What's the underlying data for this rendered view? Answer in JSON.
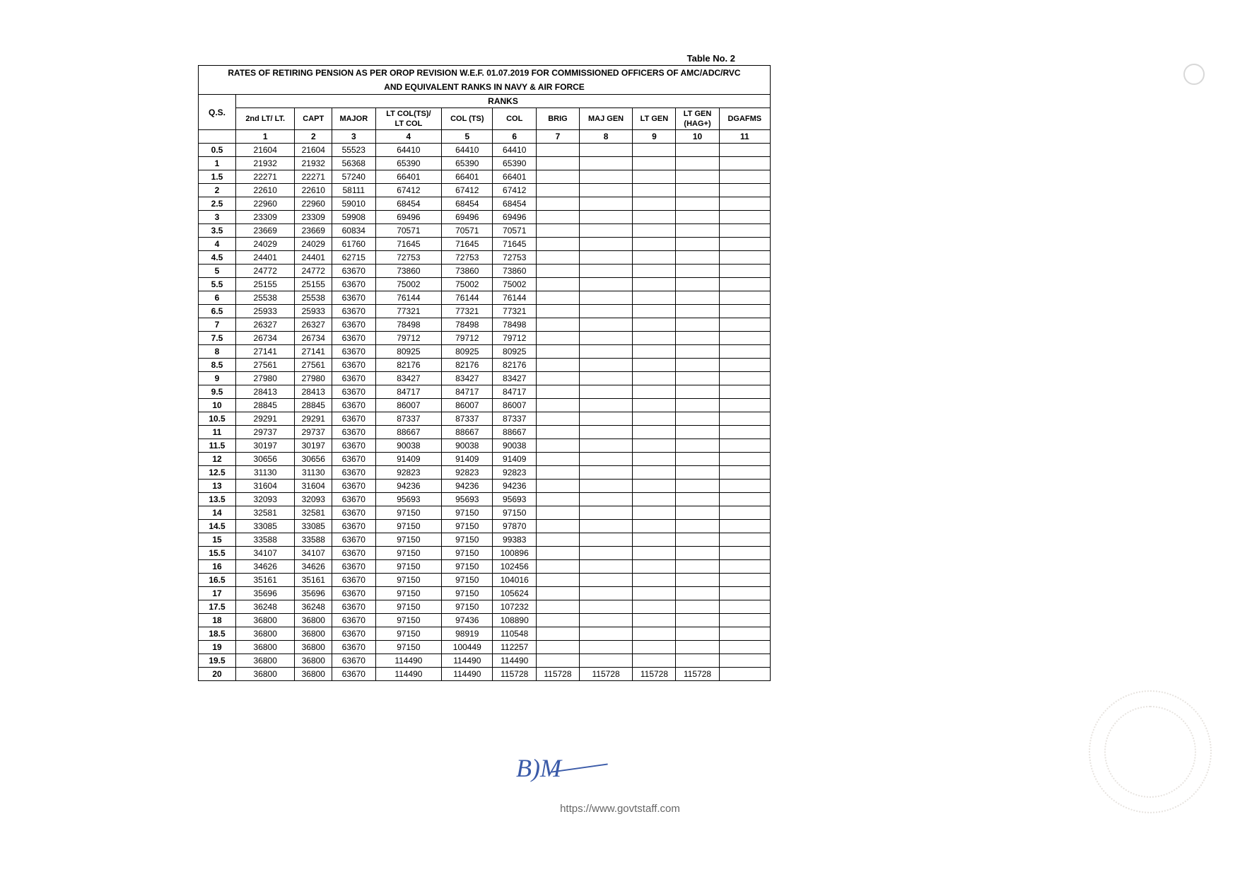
{
  "table_number": "Table No. 2",
  "title_line1": "RATES OF RETIRING PENSION AS PER OROP REVISION W.E.F. 01.07.2019 FOR COMMISSIONED OFFICERS OF AMC/ADC/RVC",
  "title_line2": "AND EQUIVALENT RANKS IN NAVY & AIR FORCE",
  "ranks_label": "RANKS",
  "qs_label": "Q.S.",
  "columns": [
    "2nd LT/ LT.",
    "CAPT",
    "MAJOR",
    "LT COL(TS)/\nLT COL",
    "COL (TS)",
    "COL",
    "BRIG",
    "MAJ GEN",
    "LT GEN",
    "LT GEN\n(HAG+)",
    "DGAFMS"
  ],
  "col_numbers": [
    "1",
    "2",
    "3",
    "4",
    "5",
    "6",
    "7",
    "8",
    "9",
    "10",
    "11"
  ],
  "rows": [
    {
      "qs": "0.5",
      "v": [
        "21604",
        "21604",
        "55523",
        "64410",
        "64410",
        "64410",
        "",
        "",
        "",
        "",
        ""
      ]
    },
    {
      "qs": "1",
      "v": [
        "21932",
        "21932",
        "56368",
        "65390",
        "65390",
        "65390",
        "",
        "",
        "",
        "",
        ""
      ]
    },
    {
      "qs": "1.5",
      "v": [
        "22271",
        "22271",
        "57240",
        "66401",
        "66401",
        "66401",
        "",
        "",
        "",
        "",
        ""
      ]
    },
    {
      "qs": "2",
      "v": [
        "22610",
        "22610",
        "58111",
        "67412",
        "67412",
        "67412",
        "",
        "",
        "",
        "",
        ""
      ]
    },
    {
      "qs": "2.5",
      "v": [
        "22960",
        "22960",
        "59010",
        "68454",
        "68454",
        "68454",
        "",
        "",
        "",
        "",
        ""
      ]
    },
    {
      "qs": "3",
      "v": [
        "23309",
        "23309",
        "59908",
        "69496",
        "69496",
        "69496",
        "",
        "",
        "",
        "",
        ""
      ]
    },
    {
      "qs": "3.5",
      "v": [
        "23669",
        "23669",
        "60834",
        "70571",
        "70571",
        "70571",
        "",
        "",
        "",
        "",
        ""
      ]
    },
    {
      "qs": "4",
      "v": [
        "24029",
        "24029",
        "61760",
        "71645",
        "71645",
        "71645",
        "",
        "",
        "",
        "",
        ""
      ]
    },
    {
      "qs": "4.5",
      "v": [
        "24401",
        "24401",
        "62715",
        "72753",
        "72753",
        "72753",
        "",
        "",
        "",
        "",
        ""
      ]
    },
    {
      "qs": "5",
      "v": [
        "24772",
        "24772",
        "63670",
        "73860",
        "73860",
        "73860",
        "",
        "",
        "",
        "",
        ""
      ]
    },
    {
      "qs": "5.5",
      "v": [
        "25155",
        "25155",
        "63670",
        "75002",
        "75002",
        "75002",
        "",
        "",
        "",
        "",
        ""
      ]
    },
    {
      "qs": "6",
      "v": [
        "25538",
        "25538",
        "63670",
        "76144",
        "76144",
        "76144",
        "",
        "",
        "",
        "",
        ""
      ]
    },
    {
      "qs": "6.5",
      "v": [
        "25933",
        "25933",
        "63670",
        "77321",
        "77321",
        "77321",
        "",
        "",
        "",
        "",
        ""
      ]
    },
    {
      "qs": "7",
      "v": [
        "26327",
        "26327",
        "63670",
        "78498",
        "78498",
        "78498",
        "",
        "",
        "",
        "",
        ""
      ]
    },
    {
      "qs": "7.5",
      "v": [
        "26734",
        "26734",
        "63670",
        "79712",
        "79712",
        "79712",
        "",
        "",
        "",
        "",
        ""
      ]
    },
    {
      "qs": "8",
      "v": [
        "27141",
        "27141",
        "63670",
        "80925",
        "80925",
        "80925",
        "",
        "",
        "",
        "",
        ""
      ]
    },
    {
      "qs": "8.5",
      "v": [
        "27561",
        "27561",
        "63670",
        "82176",
        "82176",
        "82176",
        "",
        "",
        "",
        "",
        ""
      ]
    },
    {
      "qs": "9",
      "v": [
        "27980",
        "27980",
        "63670",
        "83427",
        "83427",
        "83427",
        "",
        "",
        "",
        "",
        ""
      ]
    },
    {
      "qs": "9.5",
      "v": [
        "28413",
        "28413",
        "63670",
        "84717",
        "84717",
        "84717",
        "",
        "",
        "",
        "",
        ""
      ]
    },
    {
      "qs": "10",
      "v": [
        "28845",
        "28845",
        "63670",
        "86007",
        "86007",
        "86007",
        "",
        "",
        "",
        "",
        ""
      ]
    },
    {
      "qs": "10.5",
      "v": [
        "29291",
        "29291",
        "63670",
        "87337",
        "87337",
        "87337",
        "",
        "",
        "",
        "",
        ""
      ]
    },
    {
      "qs": "11",
      "v": [
        "29737",
        "29737",
        "63670",
        "88667",
        "88667",
        "88667",
        "",
        "",
        "",
        "",
        ""
      ]
    },
    {
      "qs": "11.5",
      "v": [
        "30197",
        "30197",
        "63670",
        "90038",
        "90038",
        "90038",
        "",
        "",
        "",
        "",
        ""
      ]
    },
    {
      "qs": "12",
      "v": [
        "30656",
        "30656",
        "63670",
        "91409",
        "91409",
        "91409",
        "",
        "",
        "",
        "",
        ""
      ]
    },
    {
      "qs": "12.5",
      "v": [
        "31130",
        "31130",
        "63670",
        "92823",
        "92823",
        "92823",
        "",
        "",
        "",
        "",
        ""
      ]
    },
    {
      "qs": "13",
      "v": [
        "31604",
        "31604",
        "63670",
        "94236",
        "94236",
        "94236",
        "",
        "",
        "",
        "",
        ""
      ]
    },
    {
      "qs": "13.5",
      "v": [
        "32093",
        "32093",
        "63670",
        "95693",
        "95693",
        "95693",
        "",
        "",
        "",
        "",
        ""
      ]
    },
    {
      "qs": "14",
      "v": [
        "32581",
        "32581",
        "63670",
        "97150",
        "97150",
        "97150",
        "",
        "",
        "",
        "",
        ""
      ]
    },
    {
      "qs": "14.5",
      "v": [
        "33085",
        "33085",
        "63670",
        "97150",
        "97150",
        "97870",
        "",
        "",
        "",
        "",
        ""
      ]
    },
    {
      "qs": "15",
      "v": [
        "33588",
        "33588",
        "63670",
        "97150",
        "97150",
        "99383",
        "",
        "",
        "",
        "",
        ""
      ]
    },
    {
      "qs": "15.5",
      "v": [
        "34107",
        "34107",
        "63670",
        "97150",
        "97150",
        "100896",
        "",
        "",
        "",
        "",
        ""
      ]
    },
    {
      "qs": "16",
      "v": [
        "34626",
        "34626",
        "63670",
        "97150",
        "97150",
        "102456",
        "",
        "",
        "",
        "",
        ""
      ]
    },
    {
      "qs": "16.5",
      "v": [
        "35161",
        "35161",
        "63670",
        "97150",
        "97150",
        "104016",
        "",
        "",
        "",
        "",
        ""
      ]
    },
    {
      "qs": "17",
      "v": [
        "35696",
        "35696",
        "63670",
        "97150",
        "97150",
        "105624",
        "",
        "",
        "",
        "",
        ""
      ]
    },
    {
      "qs": "17.5",
      "v": [
        "36248",
        "36248",
        "63670",
        "97150",
        "97150",
        "107232",
        "",
        "",
        "",
        "",
        ""
      ]
    },
    {
      "qs": "18",
      "v": [
        "36800",
        "36800",
        "63670",
        "97150",
        "97436",
        "108890",
        "",
        "",
        "",
        "",
        ""
      ]
    },
    {
      "qs": "18.5",
      "v": [
        "36800",
        "36800",
        "63670",
        "97150",
        "98919",
        "110548",
        "",
        "",
        "",
        "",
        ""
      ]
    },
    {
      "qs": "19",
      "v": [
        "36800",
        "36800",
        "63670",
        "97150",
        "100449",
        "112257",
        "",
        "",
        "",
        "",
        ""
      ]
    },
    {
      "qs": "19.5",
      "v": [
        "36800",
        "36800",
        "63670",
        "114490",
        "114490",
        "114490",
        "",
        "",
        "",
        "",
        ""
      ]
    },
    {
      "qs": "20",
      "v": [
        "36800",
        "36800",
        "63670",
        "114490",
        "114490",
        "115728",
        "115728",
        "115728",
        "115728",
        "115728",
        ""
      ]
    }
  ],
  "url": "https://www.govtstaff.com",
  "signature": "B)M"
}
